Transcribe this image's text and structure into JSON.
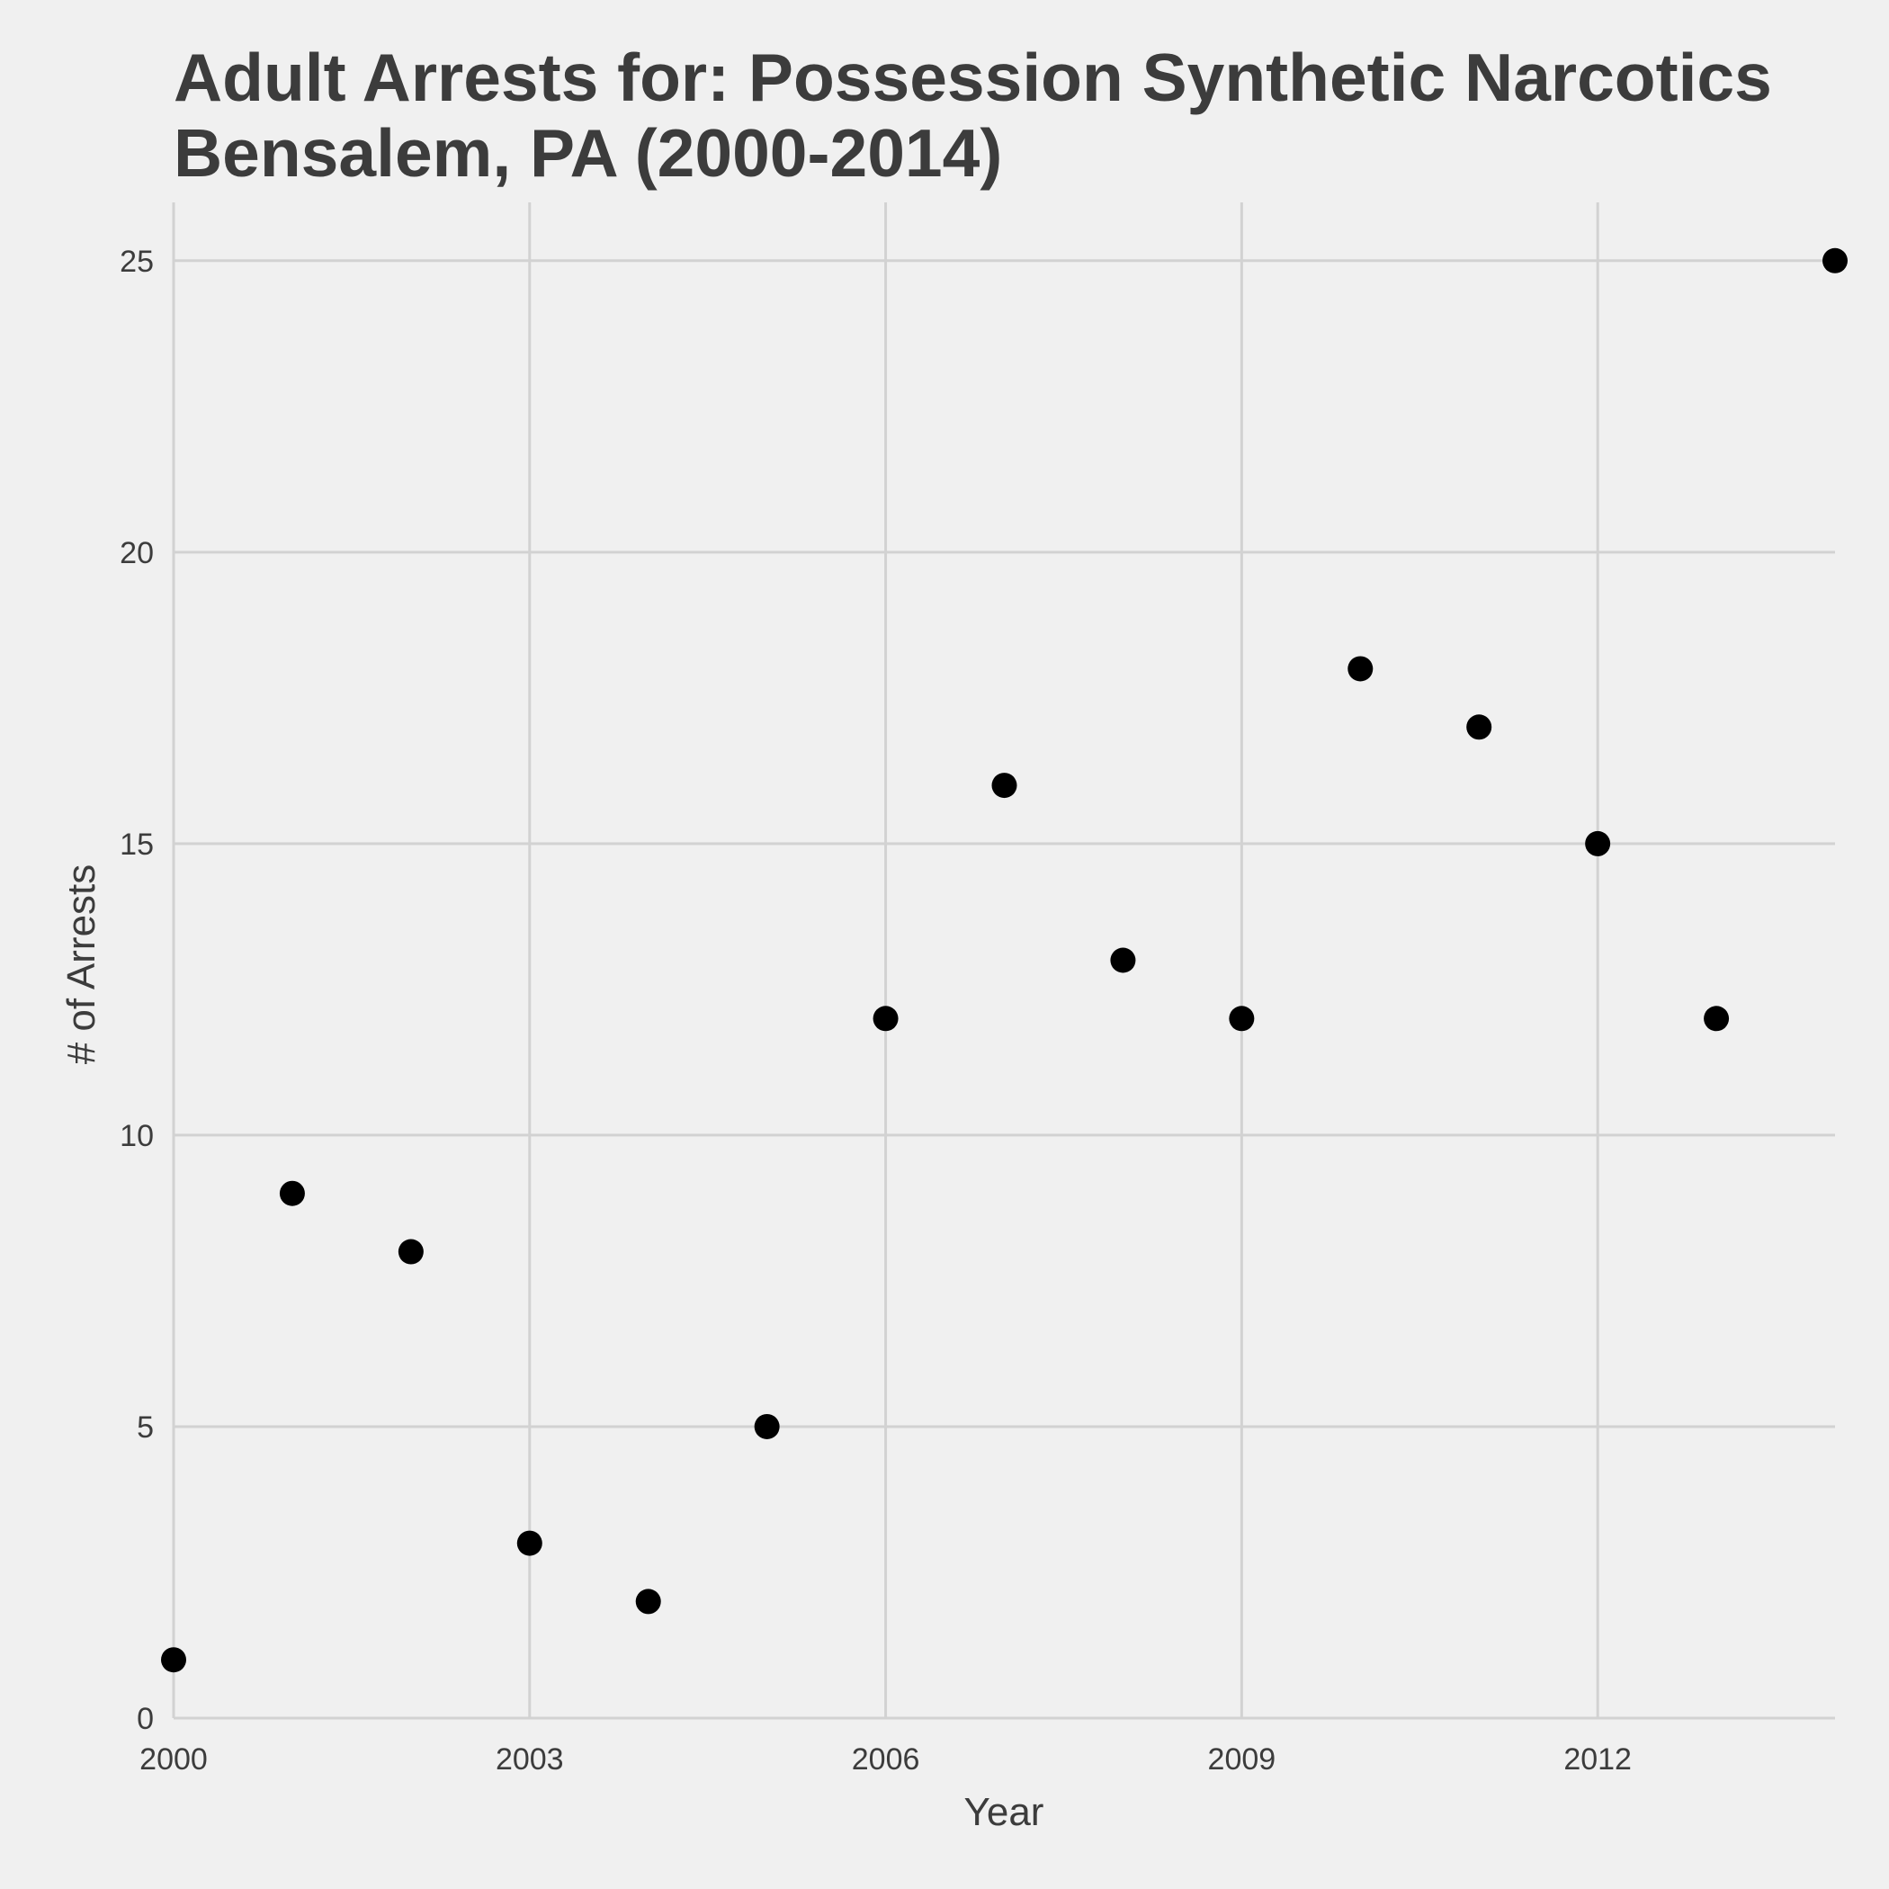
{
  "chart_data": {
    "type": "scatter",
    "title": "Adult Arrests for: Possession Synthetic Narcotics",
    "subtitle": "Bensalem, PA (2000-2014)",
    "xlabel": "Year",
    "ylabel": "# of Arrests",
    "xlim": [
      2000,
      2014
    ],
    "ylim": [
      0,
      26
    ],
    "x_ticks": [
      2000,
      2003,
      2006,
      2009,
      2012
    ],
    "y_ticks": [
      0,
      5,
      10,
      15,
      20,
      25
    ],
    "grid": true,
    "colors": {
      "background": "#f0f0f0",
      "grid": "#d2d2d2",
      "point": "#000000",
      "text": "#3c3c3c"
    },
    "series": [
      {
        "x": [
          2000,
          2001,
          2002,
          2003,
          2004,
          2005,
          2006,
          2007,
          2008,
          2009,
          2010,
          2011,
          2012,
          2013,
          2014
        ],
        "y": [
          1,
          9,
          8,
          3,
          2,
          5,
          12,
          16,
          13,
          12,
          18,
          17,
          15,
          12,
          25
        ]
      }
    ]
  }
}
